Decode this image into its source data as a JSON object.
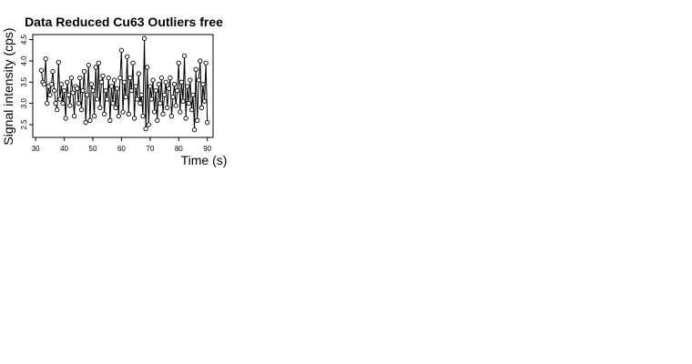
{
  "chart_data": {
    "type": "line",
    "title": "Data Reduced Cu63 Outliers free",
    "x_label": "Time (s)",
    "y_label": "Signal intensity (cps)",
    "xlim": [
      29,
      92
    ],
    "ylim": [
      2.2,
      4.62
    ],
    "xticks": [
      30,
      40,
      50,
      60,
      70,
      80,
      90
    ],
    "yticks": [
      2.5,
      {
        "value": 3,
        "label": "3.0"
      },
      3.5,
      {
        "value": 4,
        "label": "4.0"
      },
      4.5
    ],
    "x": [
      32,
      32.5,
      33,
      33.5,
      34,
      34.5,
      35,
      35.5,
      36,
      36.5,
      37,
      37.5,
      38,
      38.5,
      39,
      39.5,
      40,
      40.5,
      41,
      41.5,
      42,
      42.5,
      43,
      43.5,
      44,
      44.5,
      45,
      45.5,
      46,
      46.5,
      47,
      47.5,
      48,
      48.5,
      49,
      49.5,
      50,
      50.5,
      51,
      51.5,
      52,
      52.5,
      53,
      53.5,
      54,
      54.5,
      55,
      55.5,
      56,
      56.5,
      57,
      57.5,
      58,
      58.5,
      59,
      59.5,
      60,
      60.5,
      61,
      61.5,
      62,
      62.5,
      63,
      63.5,
      64,
      64.5,
      65,
      65.5,
      66,
      66.5,
      67,
      67.5,
      68,
      68.5,
      69,
      69.5,
      70,
      70.5,
      71,
      71.5,
      72,
      72.5,
      73,
      73.5,
      74,
      74.5,
      75,
      75.5,
      76,
      76.5,
      77,
      77.5,
      78,
      78.5,
      79,
      79.5,
      80,
      80.5,
      81,
      81.5,
      82,
      82.5,
      83,
      83.5,
      84,
      84.5,
      85,
      85.5,
      86,
      86.5,
      87,
      87.5,
      88,
      88.5,
      89,
      89.5,
      90
    ],
    "series": [
      {
        "color": "#000000",
        "values": [
          3.78,
          3.5,
          3.45,
          4.05,
          3.0,
          3.4,
          3.2,
          3.45,
          3.75,
          3.3,
          3.0,
          2.85,
          3.97,
          3.1,
          3.45,
          3.0,
          3.3,
          2.65,
          3.5,
          3.2,
          2.95,
          3.6,
          3.25,
          2.7,
          3.4,
          3.35,
          3.0,
          3.6,
          2.85,
          3.3,
          3.75,
          2.55,
          3.2,
          3.9,
          2.6,
          3.45,
          3.3,
          2.7,
          3.85,
          3.1,
          3.95,
          2.9,
          3.5,
          3.65,
          2.75,
          3.3,
          3.1,
          3.6,
          2.6,
          3.4,
          3.0,
          3.55,
          2.9,
          3.35,
          2.7,
          3.6,
          4.25,
          2.8,
          3.5,
          3.15,
          4.1,
          2.75,
          3.6,
          3.3,
          3.95,
          2.65,
          3.4,
          3.1,
          3.7,
          3.0,
          3.2,
          2.7,
          4.53,
          2.4,
          3.85,
          2.5,
          3.4,
          3.1,
          3.55,
          2.8,
          3.3,
          2.6,
          3.45,
          3.0,
          3.6,
          2.75,
          3.2,
          3.5,
          2.9,
          3.35,
          3.6,
          2.7,
          3.15,
          3.45,
          2.95,
          3.3,
          3.95,
          2.8,
          3.5,
          3.05,
          4.12,
          2.65,
          3.4,
          3.0,
          3.55,
          2.85,
          3.2,
          2.38,
          3.8,
          2.6,
          3.55,
          4.0,
          2.9,
          3.45,
          3.05,
          3.95,
          2.55
        ]
      }
    ]
  }
}
